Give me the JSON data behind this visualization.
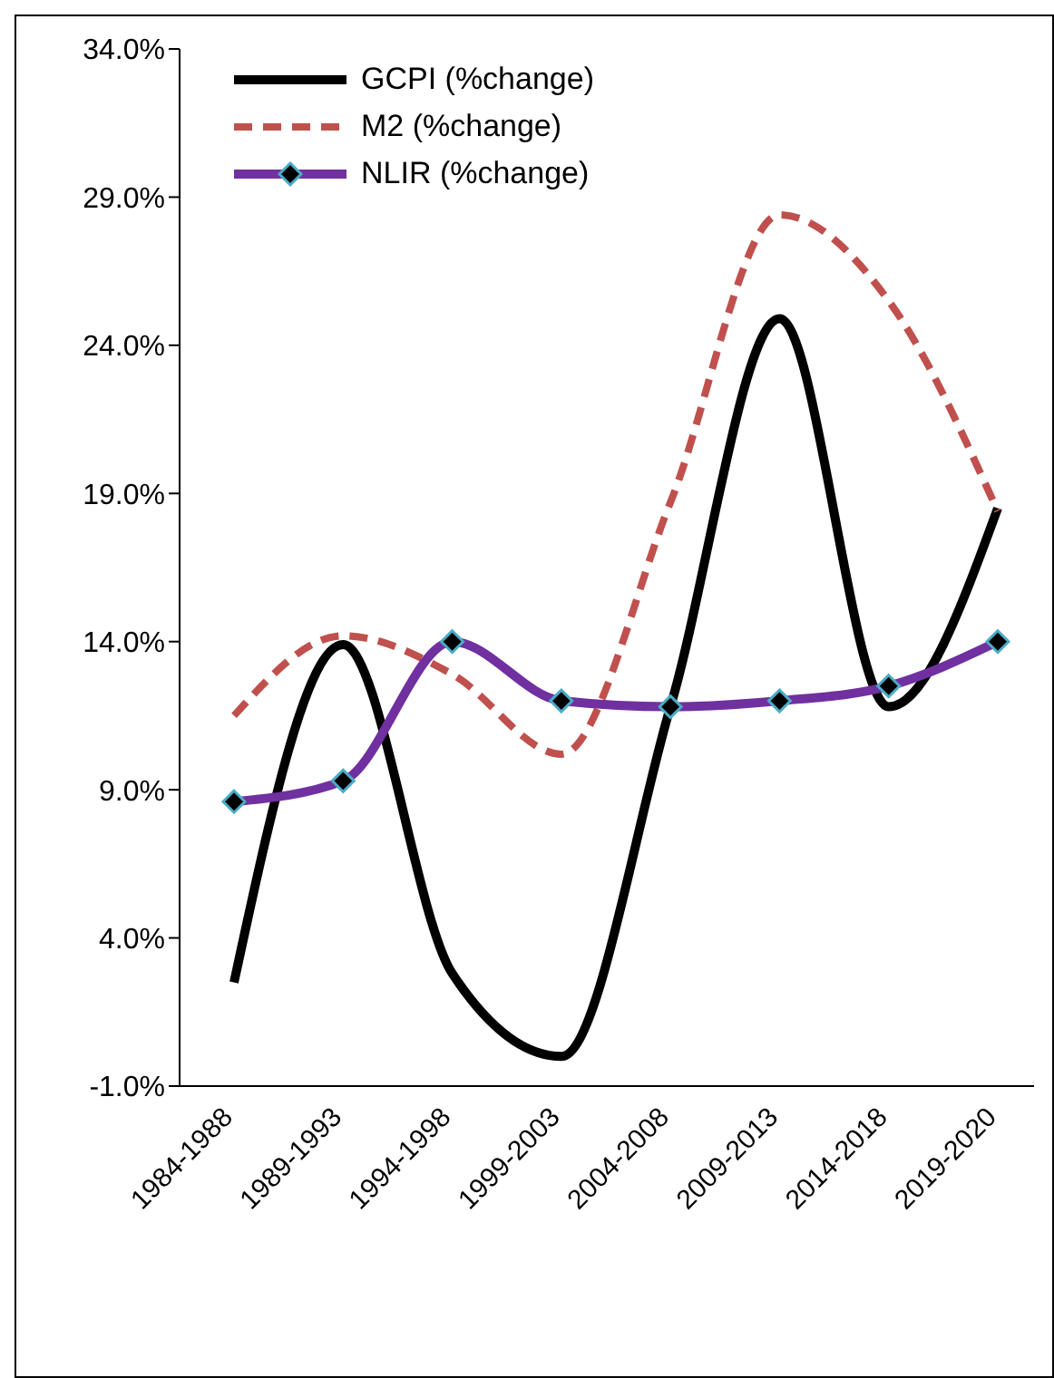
{
  "chart_data": {
    "type": "line",
    "categories": [
      "1984-1988",
      "1989-1993",
      "1994-1998",
      "1999-2003",
      "2004-2008",
      "2009-2013",
      "2014-2018",
      "2019-2020"
    ],
    "series": [
      {
        "name": "GCPI (%change)",
        "color": "#000000",
        "values": [
          2.5,
          13.9,
          2.8,
          0.0,
          11.8,
          24.9,
          11.8,
          18.5
        ],
        "marker": "none",
        "line_style": "solid"
      },
      {
        "name": "M2 (%change)",
        "color": "#c0504d",
        "values": [
          11.5,
          14.2,
          12.9,
          10.2,
          18.7,
          28.4,
          25.5,
          18.4
        ],
        "marker": "none",
        "line_style": "dashed"
      },
      {
        "name": "NLIR (%change)",
        "color": "#7030a0",
        "values": [
          8.6,
          9.3,
          14.0,
          12.0,
          11.8,
          12.0,
          12.5,
          14.0
        ],
        "marker": "diamond",
        "line_style": "solid"
      }
    ],
    "ylim": [
      -1,
      34
    ],
    "yticks": [
      {
        "value": -1,
        "label": "-1.0%"
      },
      {
        "value": 4,
        "label": "4.0%"
      },
      {
        "value": 9,
        "label": "9.0%"
      },
      {
        "value": 14,
        "label": "14.0%"
      },
      {
        "value": 19,
        "label": "19.0%"
      },
      {
        "value": 24,
        "label": "24.0%"
      },
      {
        "value": 29,
        "label": "29.0%"
      },
      {
        "value": 34,
        "label": "34.0%"
      }
    ],
    "grid": false,
    "legend": "top left"
  }
}
